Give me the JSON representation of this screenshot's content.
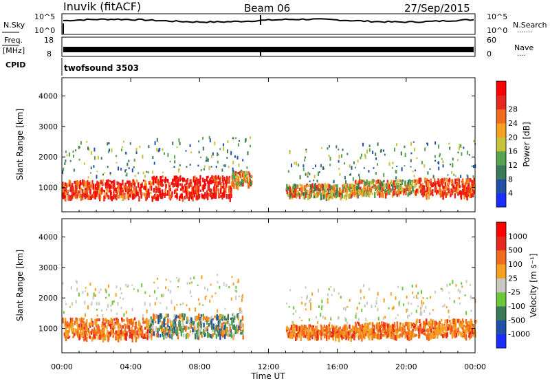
{
  "header": {
    "station": "Inuvik (fitACF)",
    "beam": "Beam 06",
    "date": "27/Sep/2015"
  },
  "status_panels": {
    "nsky_label": "N.Sky",
    "nsky_ticks": [
      "10^5",
      "10^0"
    ],
    "nsearch_label": "N.Search",
    "nsearch_ticks": [
      "10^5",
      "10^0"
    ],
    "freq_label": "Freq.",
    "freq_unit": "[MHz]",
    "freq_ticks": [
      "18",
      "8"
    ],
    "nave_label": "Nave",
    "nave_ticks": [
      "60",
      "0"
    ],
    "cpid_label": "CPID",
    "cpid_value": "twofsound 3503"
  },
  "chart_data": [
    {
      "type": "heatmap",
      "name": "power-panel",
      "xlabel": "",
      "ylabel": "Slant Range [km]",
      "yticks": [
        "1000",
        "2000",
        "3000",
        "4000"
      ],
      "ylim": [
        200,
        4600
      ],
      "xlim_hours": [
        0,
        24
      ],
      "colorbar": {
        "label": "Power [dB]",
        "tick_labels": [
          "4",
          "8",
          "12",
          "16",
          "20",
          "24",
          "28"
        ],
        "colors": [
          "#1a2cff",
          "#2050a8",
          "#3b7a58",
          "#56a24e",
          "#c6c23a",
          "#f5a020",
          "#f26a1b",
          "#e8281c",
          "#ff0000"
        ]
      },
      "echo_bands": [
        {
          "t0": 0.0,
          "t1": 5.2,
          "range_center": 950,
          "range_width": 350,
          "level": "high"
        },
        {
          "t0": 5.2,
          "t1": 9.8,
          "range_center": 1000,
          "range_width": 450,
          "level": "very-high"
        },
        {
          "t0": 9.8,
          "t1": 11.0,
          "range_center": 1300,
          "range_width": 300,
          "level": "medium"
        },
        {
          "t0": 13.0,
          "t1": 17.0,
          "range_center": 900,
          "range_width": 250,
          "level": "medium"
        },
        {
          "t0": 17.0,
          "t1": 20.5,
          "range_center": 1000,
          "range_width": 300,
          "level": "medium"
        },
        {
          "t0": 20.5,
          "t1": 24.0,
          "range_center": 1000,
          "range_width": 350,
          "level": "high"
        }
      ]
    },
    {
      "type": "heatmap",
      "name": "velocity-panel",
      "xlabel": "Time UT",
      "ylabel": "Slant Range [km]",
      "yticks": [
        "1000",
        "2000",
        "3000",
        "4000"
      ],
      "ylim": [
        200,
        4600
      ],
      "xticks": [
        "00:00",
        "04:00",
        "08:00",
        "12:00",
        "16:00",
        "20:00",
        "00:00"
      ],
      "xlim_hours": [
        0,
        24
      ],
      "colorbar": {
        "label": "Velocity [m s⁻¹]",
        "tick_labels": [
          "1000",
          "500",
          "100",
          "25",
          "-25",
          "-100",
          "-500",
          "-1000"
        ],
        "colors": [
          "#1a2cff",
          "#2050a8",
          "#3b7a58",
          "#6cc83a",
          "#c8c8c0",
          "#f5a020",
          "#f26a1b",
          "#e8281c",
          "#ff0000"
        ]
      },
      "echo_bands": [
        {
          "t0": 0.0,
          "t1": 5.0,
          "range_center": 1000,
          "range_width": 400,
          "level": "away"
        },
        {
          "t0": 5.0,
          "t1": 10.5,
          "range_center": 1100,
          "range_width": 450,
          "level": "mixed"
        },
        {
          "t0": 13.0,
          "t1": 17.0,
          "range_center": 900,
          "range_width": 250,
          "level": "away"
        },
        {
          "t0": 17.0,
          "t1": 20.5,
          "range_center": 950,
          "range_width": 300,
          "level": "away"
        },
        {
          "t0": 20.5,
          "t1": 24.0,
          "range_center": 1000,
          "range_width": 350,
          "level": "away"
        }
      ]
    }
  ]
}
